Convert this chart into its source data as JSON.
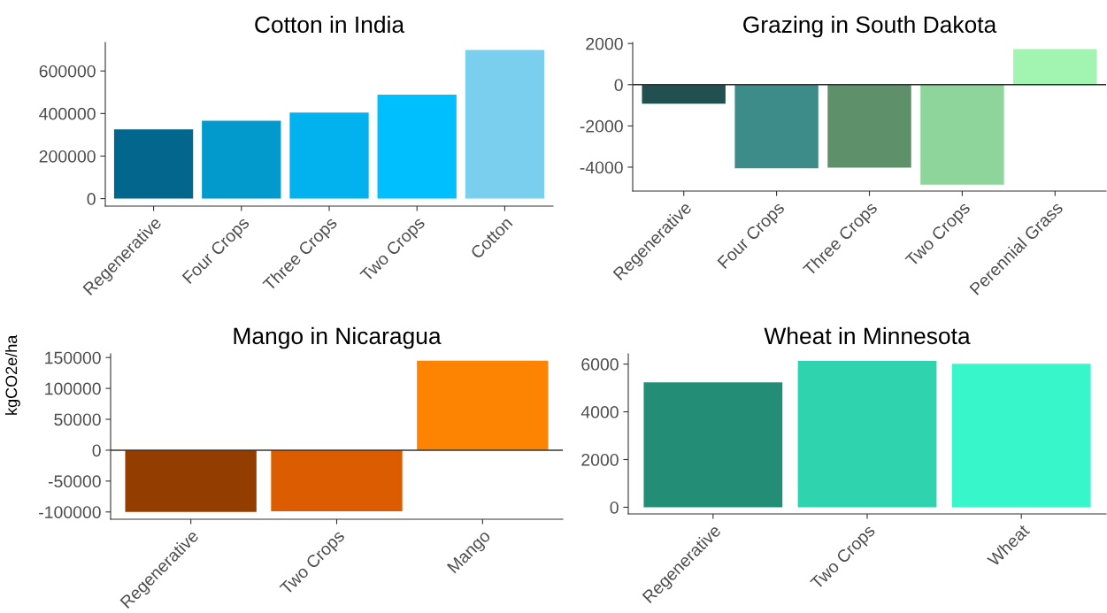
{
  "chart_data": [
    {
      "type": "bar",
      "title": "Cotton in India",
      "categories": [
        "Regenerative",
        "Four Crops",
        "Three Crops",
        "Two Crops",
        "Cotton"
      ],
      "values": [
        326000,
        366000,
        405000,
        489000,
        699000
      ],
      "colors": [
        "#02668d",
        "#0299cd",
        "#02b2ee",
        "#00bfff",
        "#79cfed"
      ],
      "ylim": [
        -35000,
        734000
      ],
      "yticks": [
        0,
        200000,
        400000,
        600000
      ]
    },
    {
      "type": "bar",
      "title": "Grazing in South Dakota",
      "categories": [
        "Regenerative",
        "Four Crops",
        "Three Crops",
        "Two Crops",
        "Perennial Grass"
      ],
      "values": [
        -920,
        -4050,
        -4020,
        -4850,
        1730
      ],
      "colors": [
        "#224f4f",
        "#3e8c89",
        "#5e906a",
        "#8ed59b",
        "#a1f5b0"
      ],
      "ylim": [
        -5160,
        2050
      ],
      "yticks": [
        -4000,
        -2000,
        0,
        2000
      ],
      "ref_lines": [
        {
          "axis": "y",
          "value": 0
        }
      ]
    },
    {
      "type": "bar",
      "title": "Mango in Nicaragua",
      "ylabel": "kgCO2e/ha",
      "categories": [
        "Regenerative",
        "Two Crops",
        "Mango"
      ],
      "values": [
        -100000,
        -99000,
        145000
      ],
      "colors": [
        "#933d01",
        "#db5c01",
        "#fd8302"
      ],
      "ylim": [
        -111800,
        156000
      ],
      "yticks": [
        -100000,
        -50000,
        0,
        50000,
        100000,
        150000
      ],
      "ref_lines": [
        {
          "axis": "y",
          "value": 0
        }
      ]
    },
    {
      "type": "bar",
      "title": "Wheat in Minnesota",
      "categories": [
        "Regenerative",
        "Two Crops",
        "Wheat"
      ],
      "values": [
        5230,
        6130,
        6010
      ],
      "colors": [
        "#248d75",
        "#2fd4ae",
        "#37f7ca"
      ],
      "ylim": [
        -280,
        6430
      ],
      "yticks": [
        0,
        2000,
        4000,
        6000
      ]
    }
  ]
}
